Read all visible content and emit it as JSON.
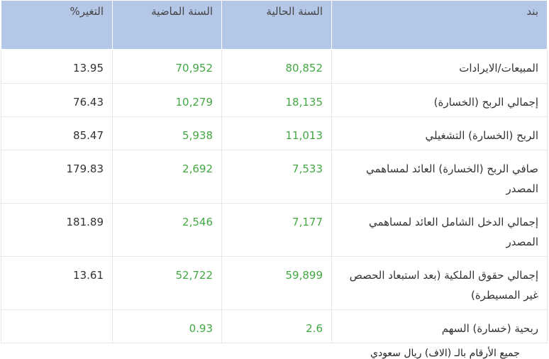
{
  "table": {
    "header": [
      "بند",
      "السنة الحالية",
      "السنة الماضية",
      "التغير%"
    ],
    "rows": [
      {
        "item": "المبيعات/الايرادات",
        "current": "80,852",
        "previous": "70,952",
        "change": "13.95"
      },
      {
        "item": "إجمالي الربح (الخسارة)",
        "current": "18,135",
        "previous": "10,279",
        "change": "76.43"
      },
      {
        "item": "الربح (الخسارة) التشغيلي",
        "current": "11,013",
        "previous": "5,938",
        "change": "85.47"
      },
      {
        "item": "صافي الربح (الخسارة) العائد لمساهمي المصدر",
        "current": "7,533",
        "previous": "2,692",
        "change": "179.83"
      },
      {
        "item": "إجمالي الدخل الشامل العائد لمساهمي المصدر",
        "current": "7,177",
        "previous": "2,546",
        "change": "181.89"
      },
      {
        "item": "إجمالي حقوق الملكية (بعد استبعاد الحصص غير المسيطرة)",
        "current": "59,899",
        "previous": "52,722",
        "change": "13.61"
      },
      {
        "item": "ربحية (خسارة) السهم",
        "current": "2.6",
        "previous": "0.93"
      }
    ]
  },
  "footnote": "جميع الأرقام بالـ (الاف) ريال سعودي"
}
